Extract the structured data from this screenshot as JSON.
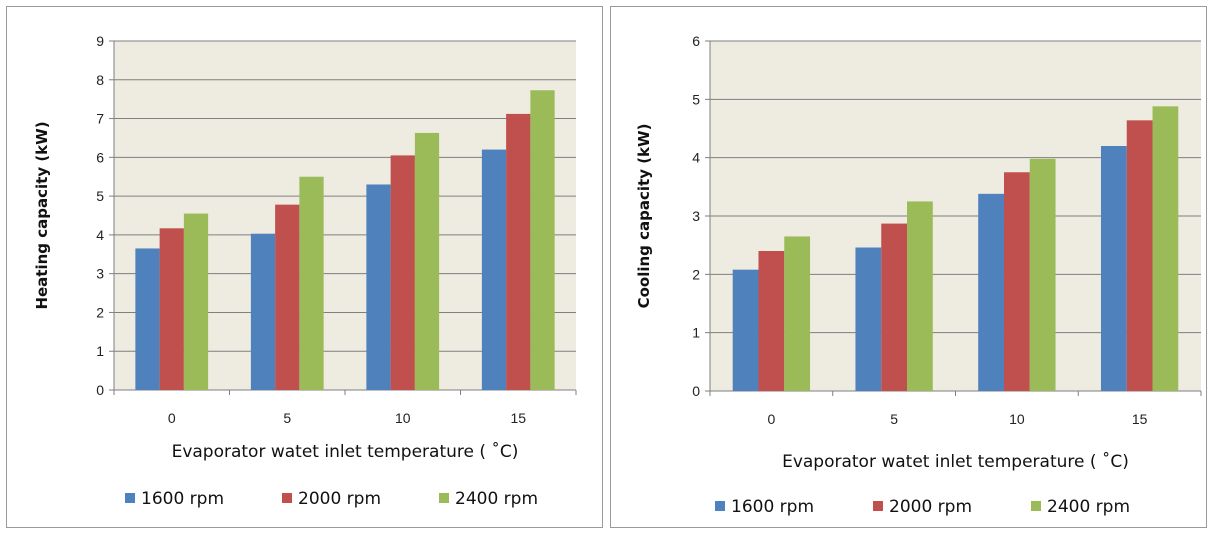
{
  "colors": {
    "plot_bg": "#eeece1",
    "grid": "#7f7f7f",
    "series": [
      "#4f81bd",
      "#c0504d",
      "#9bbb59"
    ]
  },
  "chart_data": [
    {
      "type": "bar",
      "title": "",
      "xlabel": "Evaporator watet inlet temperature ( ˚C)",
      "ylabel": "Heating capacity (kW)",
      "categories": [
        "0",
        "5",
        "10",
        "15"
      ],
      "ylim": [
        0,
        9
      ],
      "yticks": [
        "0",
        "1",
        "2",
        "3",
        "4",
        "5",
        "6",
        "7",
        "8",
        "9"
      ],
      "grid": true,
      "legend": "bottom",
      "series": [
        {
          "name": "1600 rpm",
          "values": [
            3.65,
            4.03,
            5.3,
            6.2
          ]
        },
        {
          "name": "2000 rpm",
          "values": [
            4.17,
            4.78,
            6.05,
            7.12
          ]
        },
        {
          "name": "2400 rpm",
          "values": [
            4.55,
            5.5,
            6.63,
            7.73
          ]
        }
      ]
    },
    {
      "type": "bar",
      "title": "",
      "xlabel": "Evaporator watet inlet temperature ( ˚C)",
      "ylabel": "Cooling capacity (kW)",
      "categories": [
        "0",
        "5",
        "10",
        "15"
      ],
      "ylim": [
        0,
        6
      ],
      "yticks": [
        "0",
        "1",
        "2",
        "3",
        "4",
        "5",
        "6"
      ],
      "grid": true,
      "legend": "bottom",
      "series": [
        {
          "name": "1600 rpm",
          "values": [
            2.08,
            2.46,
            3.38,
            4.2
          ]
        },
        {
          "name": "2000 rpm",
          "values": [
            2.4,
            2.87,
            3.75,
            4.64
          ]
        },
        {
          "name": "2400 rpm",
          "values": [
            2.65,
            3.25,
            3.98,
            4.88
          ]
        }
      ]
    }
  ]
}
